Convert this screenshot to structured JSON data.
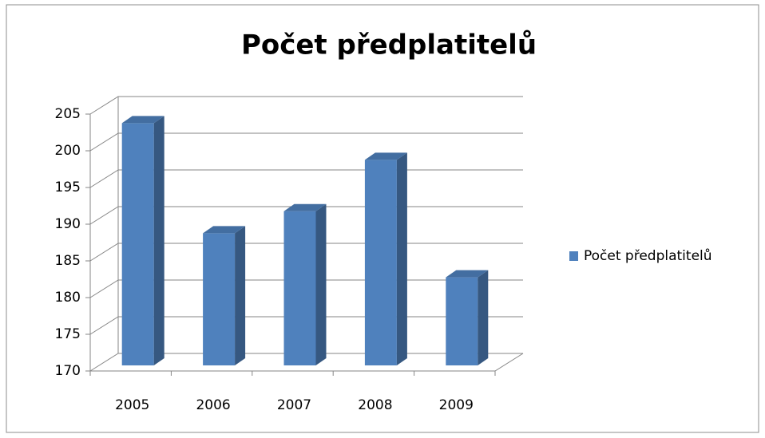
{
  "chart_data": {
    "type": "bar3d",
    "title": "Počet předplatitelů",
    "categories": [
      "2005",
      "2006",
      "2007",
      "2008",
      "2009"
    ],
    "series": [
      {
        "name": "Počet předplatitelů",
        "color": "#4f81bd",
        "values": [
          203,
          188,
          191,
          198,
          182
        ]
      }
    ],
    "ylim": [
      170,
      205
    ],
    "yticks": [
      170,
      175,
      180,
      185,
      190,
      195,
      200,
      205
    ],
    "grid": true,
    "legend": "right"
  }
}
